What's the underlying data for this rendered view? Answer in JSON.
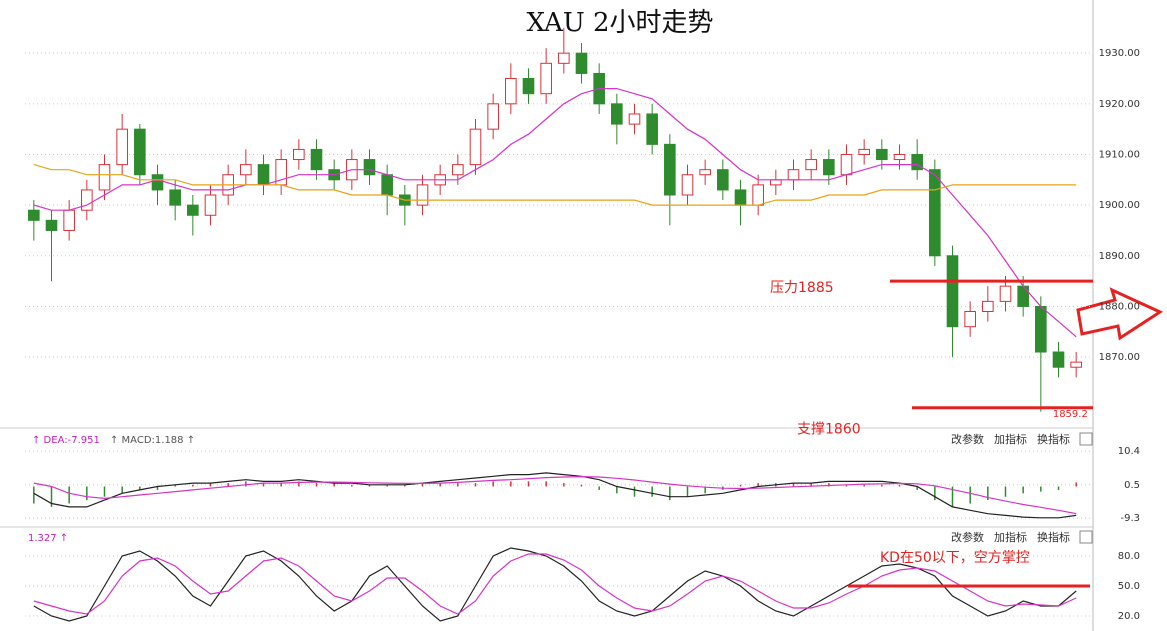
{
  "chart_data": [
    {
      "type": "candlestick",
      "title": "XAU 2小时走势",
      "open": [
        1899,
        1897,
        1895,
        1899,
        1903,
        1908,
        1915,
        1906,
        1903,
        1900,
        1898,
        1902,
        1906,
        1908,
        1904,
        1909,
        1911,
        1907,
        1905,
        1909,
        1906,
        1902,
        1900,
        1904,
        1906,
        1908,
        1915,
        1920,
        1925,
        1922,
        1928,
        1930,
        1926,
        1920,
        1916,
        1918,
        1912,
        1902,
        1906,
        1907,
        1903,
        1900,
        1904,
        1905,
        1907,
        1909,
        1906,
        1910,
        1911,
        1909,
        1910,
        1907,
        1890,
        1876,
        1879,
        1881,
        1884,
        1880,
        1871,
        1868
      ],
      "high": [
        1901,
        1899,
        1901,
        1905,
        1910,
        1918,
        1916,
        1908,
        1905,
        1902,
        1904,
        1908,
        1911,
        1910,
        1911,
        1913,
        1913,
        1909,
        1911,
        1911,
        1908,
        1904,
        1906,
        1908,
        1910,
        1917,
        1922,
        1928,
        1927,
        1931,
        1935,
        1932,
        1928,
        1922,
        1920,
        1920,
        1914,
        1908,
        1909,
        1909,
        1905,
        1906,
        1907,
        1909,
        1911,
        1911,
        1912,
        1913,
        1913,
        1912,
        1913,
        1909,
        1892,
        1881,
        1884,
        1886,
        1886,
        1882,
        1873,
        1871
      ],
      "low": [
        1893,
        1885,
        1893,
        1897,
        1901,
        1906,
        1904,
        1900,
        1897,
        1894,
        1896,
        1900,
        1904,
        1902,
        1902,
        1907,
        1905,
        1903,
        1903,
        1904,
        1898,
        1896,
        1898,
        1902,
        1904,
        1906,
        1913,
        1918,
        1920,
        1920,
        1926,
        1924,
        1918,
        1912,
        1914,
        1910,
        1896,
        1900,
        1904,
        1901,
        1896,
        1898,
        1902,
        1903,
        1905,
        1904,
        1904,
        1908,
        1907,
        1907,
        1905,
        1888,
        1870,
        1874,
        1877,
        1879,
        1878,
        1859.2,
        1866,
        1866
      ],
      "close": [
        1897,
        1895,
        1899,
        1903,
        1908,
        1915,
        1906,
        1903,
        1900,
        1898,
        1902,
        1906,
        1908,
        1904,
        1909,
        1911,
        1907,
        1905,
        1909,
        1906,
        1902,
        1900,
        1904,
        1906,
        1908,
        1915,
        1920,
        1925,
        1922,
        1928,
        1930,
        1926,
        1920,
        1916,
        1918,
        1912,
        1902,
        1906,
        1907,
        1903,
        1900,
        1904,
        1905,
        1907,
        1909,
        1906,
        1910,
        1911,
        1909,
        1910,
        1907,
        1890,
        1876,
        1879,
        1881,
        1884,
        1880,
        1871,
        1868,
        1869
      ],
      "up_color": "#d9313a",
      "down_color": "#2e8b2e",
      "series": [
        {
          "color": "#d633c8",
          "values": [
            1900,
            1899,
            1899,
            1900,
            1902,
            1904,
            1904,
            1905,
            1904,
            1903,
            1903,
            1903,
            1904,
            1904,
            1905,
            1906,
            1906,
            1906,
            1907,
            1907,
            1906,
            1905,
            1905,
            1905,
            1905,
            1907,
            1909,
            1912,
            1914,
            1917,
            1920,
            1922,
            1923,
            1923,
            1922,
            1921,
            1918,
            1915,
            1913,
            1910,
            1907,
            1905,
            1905,
            1905,
            1905,
            1905,
            1906,
            1907,
            1908,
            1908,
            1908,
            1906,
            1902,
            1898,
            1894,
            1889,
            1884,
            1880,
            1877,
            1874
          ]
        },
        {
          "color": "#e8a317",
          "values": [
            1908,
            1907,
            1907,
            1906,
            1906,
            1906,
            1905,
            1905,
            1905,
            1904,
            1904,
            1904,
            1904,
            1904,
            1904,
            1903,
            1903,
            1903,
            1902,
            1902,
            1902,
            1901,
            1901,
            1901,
            1901,
            1901,
            1901,
            1901,
            1901,
            1901,
            1901,
            1901,
            1901,
            1901,
            1901,
            1900,
            1900,
            1900,
            1900,
            1900,
            1900,
            1900,
            1901,
            1901,
            1901,
            1902,
            1902,
            1902,
            1903,
            1903,
            1903,
            1903,
            1904,
            1904,
            1904,
            1904,
            1904,
            1904,
            1904,
            1904
          ]
        }
      ],
      "ylim": [
        1856,
        1940.5
      ],
      "yticks": [
        {
          "value": 1870,
          "label": "1870.00"
        },
        {
          "value": 1880,
          "label": "1880.00"
        },
        {
          "value": 1890,
          "label": "1890.00"
        },
        {
          "value": 1900,
          "label": "1900.00"
        },
        {
          "value": 1910,
          "label": "1910.00"
        },
        {
          "value": 1920,
          "label": "1920.00"
        },
        {
          "value": 1930,
          "label": "1930.00"
        }
      ],
      "grid": true,
      "low_label": {
        "value": 1859.2,
        "label": "1859.2"
      },
      "annotations": [
        {
          "label": "压力1885",
          "value": 1885,
          "color": "#e52222"
        },
        {
          "label": "支撑1860",
          "value": 1860,
          "color": "#e52222"
        }
      ]
    },
    {
      "type": "macd",
      "header": [
        "↑ DEA:-7.951",
        "↑ MACD:1.188 ↑"
      ],
      "toolbar": [
        "改参数",
        "加指标",
        "换指标"
      ],
      "values": [
        -5,
        -6,
        -5,
        -4,
        -3,
        -2,
        -1,
        -1,
        0.5,
        0.5,
        1,
        1,
        1.5,
        1,
        1,
        1.5,
        1,
        1,
        0.5,
        0.5,
        0.5,
        0.5,
        1,
        1,
        1,
        1,
        1.5,
        1.5,
        1.5,
        1.5,
        1,
        0.5,
        -1,
        -2,
        -3,
        -3,
        -4,
        -3,
        -2,
        -1,
        0.5,
        1,
        1,
        1,
        1,
        1,
        0.5,
        0.5,
        0.5,
        0.5,
        -1,
        -4,
        -6,
        -5,
        -4,
        -3,
        -2,
        -1.5,
        -1,
        1.2
      ],
      "series": [
        {
          "color": "#222222",
          "values": [
            -2,
            -5,
            -6,
            -6,
            -4,
            -2,
            -1,
            0,
            0.5,
            1,
            1,
            1.5,
            2,
            1.5,
            1.5,
            2,
            1.5,
            1,
            1,
            0.5,
            0.5,
            0.5,
            1,
            1.5,
            2,
            2.5,
            3,
            3.5,
            3.5,
            4,
            3.5,
            3,
            2,
            0,
            -1,
            -2,
            -3,
            -3,
            -2.5,
            -2,
            -1,
            0,
            0.5,
            1,
            1,
            1.5,
            1.5,
            1.5,
            1.5,
            1,
            0,
            -3,
            -6,
            -7,
            -8,
            -8.5,
            -9,
            -9.2,
            -9.2,
            -8.5
          ]
        },
        {
          "color": "#d633c8",
          "values": [
            1,
            0,
            -2,
            -3,
            -3.5,
            -3,
            -2.5,
            -2,
            -1.5,
            -1,
            -0.5,
            0,
            0.5,
            1,
            1,
            1.2,
            1.3,
            1.3,
            1.2,
            1.1,
            1,
            0.9,
            0.9,
            1,
            1.2,
            1.5,
            1.8,
            2,
            2.3,
            2.6,
            2.8,
            2.9,
            2.8,
            2.4,
            1.9,
            1.3,
            0.7,
            0.2,
            -0.2,
            -0.5,
            -0.6,
            -0.5,
            -0.3,
            -0.1,
            0.1,
            0.3,
            0.5,
            0.7,
            0.8,
            0.9,
            0.8,
            0.2,
            -0.9,
            -2,
            -3.2,
            -4.3,
            -5.3,
            -6.1,
            -7,
            -7.95
          ]
        }
      ],
      "ylim": [
        -11.9,
        16.6
      ],
      "yticks": [
        10.4,
        0.5,
        -9.3
      ]
    },
    {
      "type": "kd",
      "header": [
        "1.327 ↑"
      ],
      "toolbar": [
        "改参数",
        "加指标",
        "换指标"
      ],
      "series": [
        {
          "color": "#222222",
          "values": [
            30,
            20,
            15,
            20,
            50,
            80,
            85,
            75,
            60,
            40,
            30,
            55,
            80,
            85,
            75,
            60,
            40,
            25,
            35,
            60,
            70,
            50,
            30,
            15,
            20,
            50,
            80,
            88,
            85,
            80,
            70,
            55,
            35,
            25,
            20,
            25,
            40,
            55,
            65,
            60,
            50,
            35,
            25,
            20,
            30,
            40,
            50,
            60,
            70,
            72,
            68,
            60,
            40,
            30,
            20,
            25,
            35,
            30,
            30,
            45
          ]
        },
        {
          "color": "#d633c8",
          "values": [
            35,
            30,
            25,
            22,
            35,
            60,
            75,
            78,
            70,
            55,
            42,
            45,
            60,
            75,
            78,
            70,
            55,
            40,
            35,
            45,
            58,
            58,
            45,
            30,
            22,
            35,
            60,
            75,
            82,
            82,
            76,
            66,
            50,
            38,
            28,
            25,
            30,
            42,
            55,
            60,
            55,
            45,
            35,
            28,
            28,
            33,
            42,
            50,
            60,
            66,
            68,
            65,
            55,
            45,
            35,
            30,
            32,
            31,
            30,
            38
          ]
        }
      ],
      "ylim": [
        8,
        108
      ],
      "yticks": [
        {
          "value": 80,
          "label": "80.0"
        },
        {
          "value": 50,
          "label": "50.0"
        },
        {
          "value": 20,
          "label": "20.0"
        }
      ],
      "annotations": [
        {
          "label": "KD在50以下，空方掌控",
          "value": 50,
          "color": "#e52222"
        }
      ]
    }
  ]
}
